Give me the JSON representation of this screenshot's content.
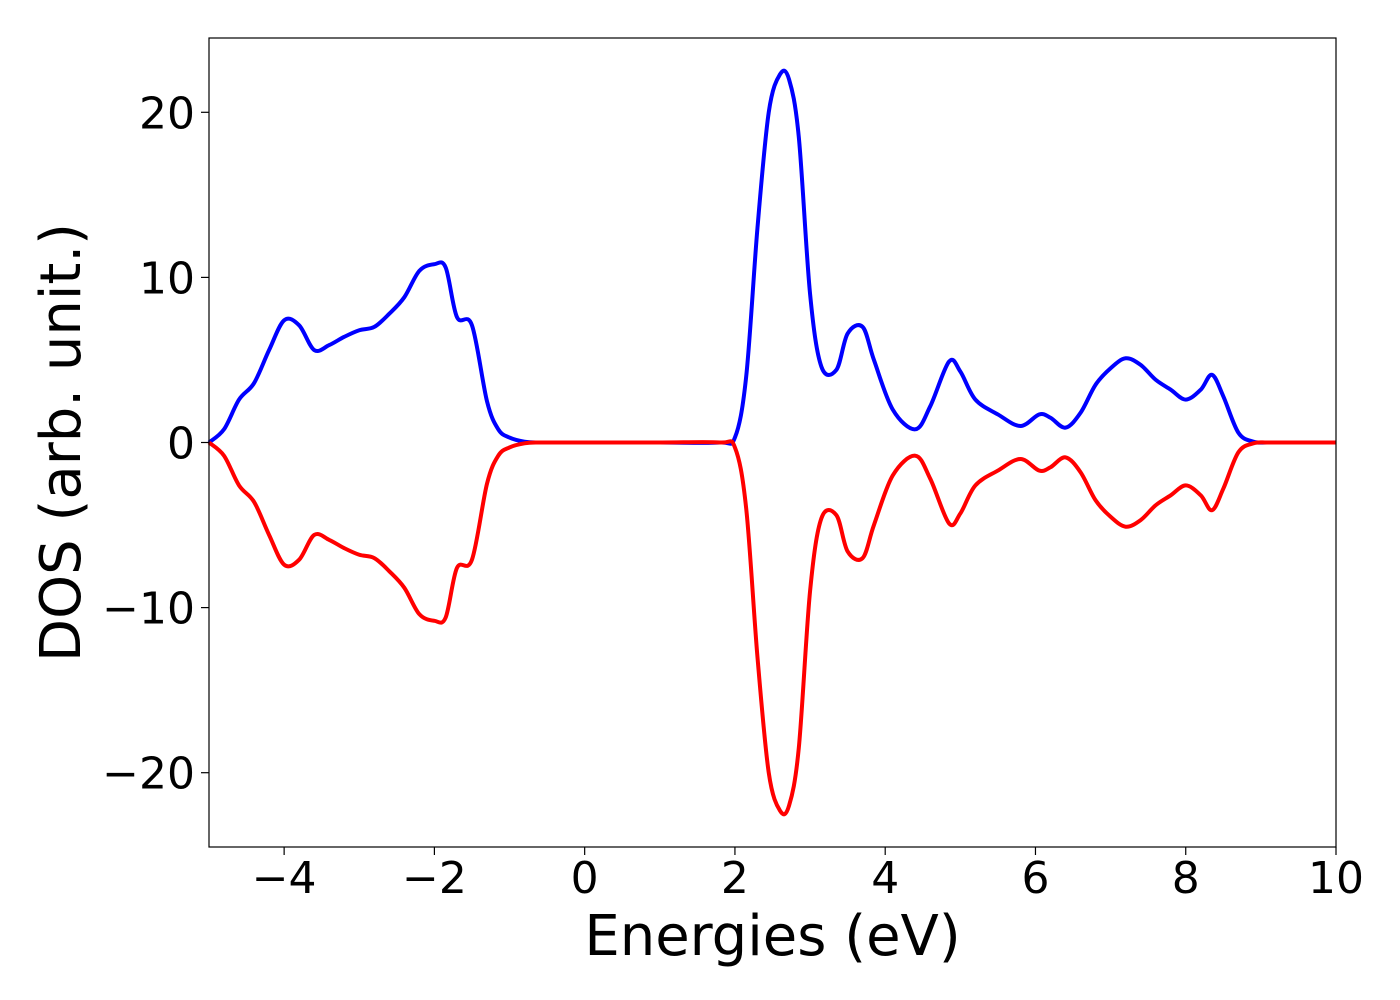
{
  "chart_data": {
    "type": "line",
    "title": "",
    "xlabel": "Energies (eV)",
    "ylabel": "DOS (arb. unit.)",
    "xlim": [
      -5,
      10
    ],
    "ylim": [
      -24.5,
      24.5
    ],
    "xticks": [
      -4,
      -2,
      0,
      2,
      4,
      6,
      8,
      10
    ],
    "yticks": [
      -20,
      -10,
      0,
      10,
      20
    ],
    "xtick_labels": [
      "−4",
      "−2",
      "0",
      "2",
      "4",
      "6",
      "8",
      "10"
    ],
    "ytick_labels": [
      "−20",
      "−10",
      "0",
      "10",
      "20"
    ],
    "grid": false,
    "legend": "none",
    "series": [
      {
        "color": "#0000ff",
        "x": [
          -5.0,
          -4.8,
          -4.6,
          -4.4,
          -4.2,
          -4.0,
          -3.8,
          -3.6,
          -3.4,
          -3.2,
          -3.0,
          -2.8,
          -2.6,
          -2.4,
          -2.2,
          -2.0,
          -1.85,
          -1.7,
          -1.5,
          -1.3,
          -1.15,
          -1.0,
          -0.8,
          -0.6,
          0.0,
          1.0,
          1.8,
          2.0,
          2.15,
          2.3,
          2.45,
          2.6,
          2.72,
          2.85,
          3.0,
          3.15,
          3.35,
          3.5,
          3.7,
          3.85,
          4.1,
          4.4,
          4.6,
          4.85,
          5.0,
          5.2,
          5.5,
          5.8,
          6.05,
          6.2,
          6.4,
          6.6,
          6.8,
          7.0,
          7.2,
          7.4,
          7.6,
          7.8,
          8.0,
          8.2,
          8.35,
          8.5,
          8.7,
          8.9,
          9.1,
          9.5,
          10.0
        ],
        "values": [
          0.0,
          0.8,
          2.6,
          3.6,
          5.6,
          7.4,
          7.1,
          5.6,
          5.9,
          6.4,
          6.8,
          7.0,
          7.8,
          8.8,
          10.4,
          10.8,
          10.6,
          7.6,
          7.1,
          2.5,
          0.8,
          0.3,
          0.05,
          0.0,
          0.0,
          0.0,
          0.0,
          0.3,
          4.0,
          13.0,
          20.0,
          22.3,
          22.0,
          18.5,
          9.0,
          4.6,
          4.4,
          6.6,
          7.0,
          5.0,
          2.0,
          0.8,
          2.2,
          4.9,
          4.3,
          2.6,
          1.7,
          1.0,
          1.7,
          1.5,
          0.9,
          1.8,
          3.5,
          4.5,
          5.1,
          4.7,
          3.8,
          3.2,
          2.6,
          3.2,
          4.1,
          2.8,
          0.6,
          0.05,
          0.0,
          0.0,
          0.0
        ]
      },
      {
        "color": "#ff0000",
        "x": [
          -5.0,
          -4.8,
          -4.6,
          -4.4,
          -4.2,
          -4.0,
          -3.8,
          -3.6,
          -3.4,
          -3.2,
          -3.0,
          -2.8,
          -2.6,
          -2.4,
          -2.2,
          -2.0,
          -1.85,
          -1.7,
          -1.5,
          -1.3,
          -1.15,
          -1.0,
          -0.8,
          -0.6,
          0.0,
          1.0,
          1.8,
          2.0,
          2.15,
          2.3,
          2.45,
          2.6,
          2.72,
          2.85,
          3.0,
          3.15,
          3.35,
          3.5,
          3.7,
          3.85,
          4.1,
          4.4,
          4.6,
          4.85,
          5.0,
          5.2,
          5.5,
          5.8,
          6.05,
          6.2,
          6.4,
          6.6,
          6.8,
          7.0,
          7.2,
          7.4,
          7.6,
          7.8,
          8.0,
          8.2,
          8.35,
          8.5,
          8.7,
          8.9,
          9.1,
          9.5,
          10.0
        ],
        "values": [
          0.0,
          -0.8,
          -2.6,
          -3.6,
          -5.6,
          -7.4,
          -7.1,
          -5.6,
          -5.9,
          -6.4,
          -6.8,
          -7.0,
          -7.8,
          -8.8,
          -10.4,
          -10.8,
          -10.6,
          -7.6,
          -7.1,
          -2.5,
          -0.8,
          -0.3,
          -0.05,
          0.0,
          0.0,
          0.0,
          0.0,
          -0.3,
          -4.0,
          -13.0,
          -20.0,
          -22.3,
          -22.0,
          -18.5,
          -9.0,
          -4.6,
          -4.4,
          -6.6,
          -7.0,
          -5.0,
          -2.0,
          -0.8,
          -2.2,
          -4.9,
          -4.3,
          -2.6,
          -1.7,
          -1.0,
          -1.7,
          -1.5,
          -0.9,
          -1.8,
          -3.5,
          -4.5,
          -5.1,
          -4.7,
          -3.8,
          -3.2,
          -2.6,
          -3.2,
          -4.1,
          -2.8,
          -0.6,
          -0.05,
          0.0,
          0.0,
          0.0
        ]
      }
    ]
  }
}
